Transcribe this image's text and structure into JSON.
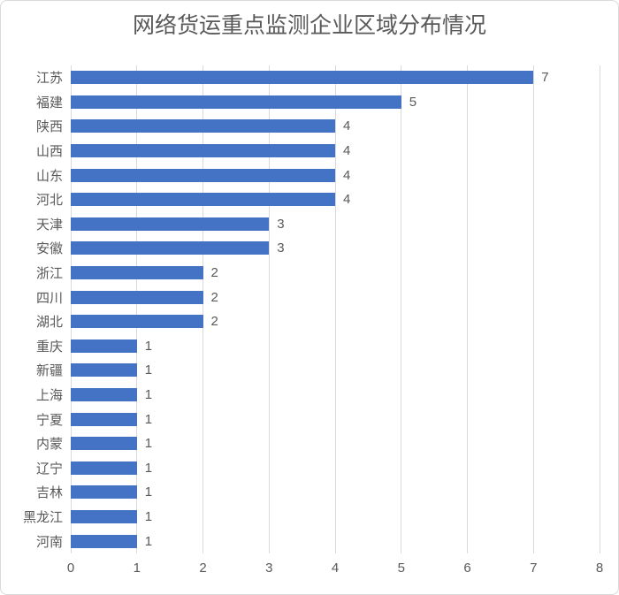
{
  "chart_data": {
    "type": "bar",
    "orientation": "horizontal",
    "title": "网络货运重点监测企业区域分布情况",
    "categories": [
      "江苏",
      "福建",
      "陕西",
      "山西",
      "山东",
      "河北",
      "天津",
      "安徽",
      "浙江",
      "四川",
      "湖北",
      "重庆",
      "新疆",
      "上海",
      "宁夏",
      "内蒙",
      "辽宁",
      "吉林",
      "黑龙江",
      "河南"
    ],
    "values": [
      7,
      5,
      4,
      4,
      4,
      4,
      3,
      3,
      2,
      2,
      2,
      1,
      1,
      1,
      1,
      1,
      1,
      1,
      1,
      1
    ],
    "data_labels": [
      "7",
      "5",
      "4",
      "4",
      "4",
      "4",
      "3",
      "3",
      "2",
      "2",
      "2",
      "1",
      "1",
      "1",
      "1",
      "1",
      "1",
      "1",
      "1",
      "1"
    ],
    "xlabel": "",
    "ylabel": "",
    "xlim": [
      0,
      8
    ],
    "x_ticks": [
      0,
      1,
      2,
      3,
      4,
      5,
      6,
      7,
      8
    ],
    "grid": "vertical",
    "legend": "none",
    "colors": {
      "bar": "#4472c4",
      "text": "#595959",
      "gridline": "#d9d9d9",
      "border": "#d9d9d9",
      "background": "#ffffff"
    }
  }
}
